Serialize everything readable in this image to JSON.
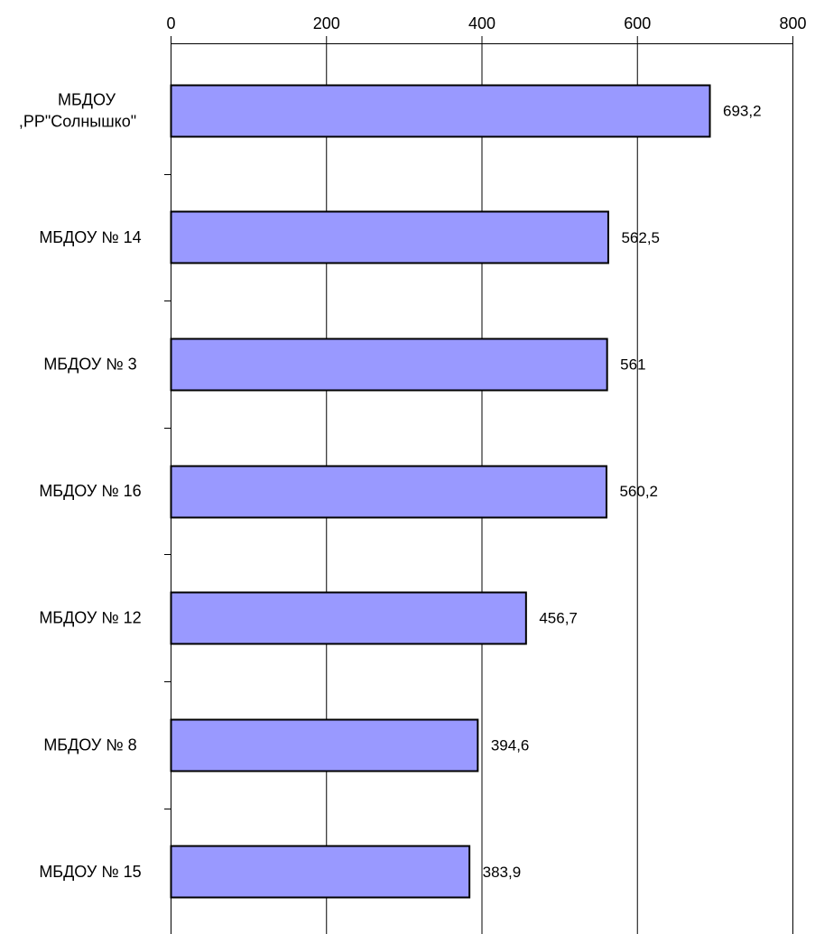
{
  "chart_data": {
    "type": "bar",
    "orientation": "horizontal",
    "title": "",
    "xlabel": "",
    "ylabel": "",
    "xlim": [
      0,
      800
    ],
    "xticks": [
      0,
      200,
      400,
      600,
      800
    ],
    "xtick_labels": [
      "0",
      "200",
      "400",
      "600",
      "800"
    ],
    "grid": "vertical major gridlines",
    "legend": "none",
    "bar_color": "#9999ff",
    "bar_edge_color": "#000000",
    "categories": [
      {
        "lines": [
          "МБДОУ",
          ",РР\"Солнышко\""
        ]
      },
      {
        "lines": [
          "МБДОУ № 14"
        ]
      },
      {
        "lines": [
          "МБДОУ № 3"
        ]
      },
      {
        "lines": [
          "МБДОУ № 16"
        ]
      },
      {
        "lines": [
          "МБДОУ № 12"
        ]
      },
      {
        "lines": [
          "МБДОУ № 8"
        ]
      },
      {
        "lines": [
          "МБДОУ № 15"
        ]
      }
    ],
    "values": [
      693.2,
      562.5,
      561,
      560.2,
      456.7,
      394.6,
      383.9
    ],
    "data_labels": [
      "693,2",
      "562,5",
      "561",
      "560,2",
      "456,7",
      "394,6",
      "383,9"
    ]
  }
}
